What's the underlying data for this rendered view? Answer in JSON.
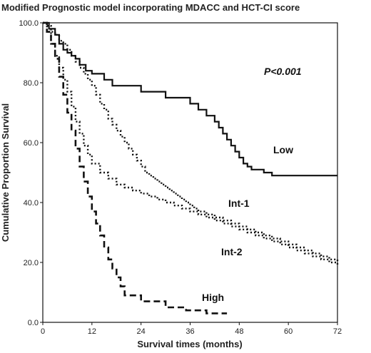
{
  "chart_data": {
    "type": "line",
    "title": "Modified Prognostic model incorporating MDACC and HCT-CI score",
    "xlabel": "Survival times (months)",
    "ylabel": "Cumulative  Proportion Survival",
    "xlim": [
      0,
      72
    ],
    "ylim": [
      0,
      100
    ],
    "xticks": [
      0,
      12,
      24,
      36,
      48,
      60,
      72
    ],
    "yticks": [
      0.0,
      20.0,
      40.0,
      60.0,
      80.0,
      100.0
    ],
    "xtick_labels": [
      "0",
      "12",
      "24",
      "36",
      "48",
      "60",
      "72"
    ],
    "ytick_labels": [
      "0.0",
      "20.0",
      "40.0",
      "60.0",
      "80.0",
      "100.0"
    ],
    "grid": false,
    "legend": "none",
    "annotation": "P<0.001",
    "series": [
      {
        "name": "Low",
        "style": "solid",
        "color": "#111111",
        "x": [
          0,
          1.5,
          3,
          4,
          5,
          6,
          7,
          8,
          9,
          10.5,
          12,
          15,
          17,
          24,
          30,
          36,
          38,
          40,
          42,
          43,
          44,
          45,
          46,
          47,
          48,
          49,
          50,
          51,
          52,
          54,
          56,
          72
        ],
        "y": [
          100,
          98,
          96,
          93,
          91,
          90,
          89,
          88,
          86,
          84,
          83,
          81,
          79,
          77,
          75,
          73,
          71,
          69,
          67,
          65,
          63,
          61,
          59,
          57,
          55,
          53,
          52,
          51,
          51,
          50,
          49,
          49
        ]
      },
      {
        "name": "Int-1",
        "style": "dotted",
        "color": "#111111",
        "x": [
          0,
          1,
          2,
          3,
          4,
          5,
          6,
          7,
          8,
          9,
          10,
          11,
          12,
          13,
          14,
          15,
          16,
          17,
          18,
          19,
          20,
          21,
          22,
          23,
          24,
          25,
          26,
          27,
          28,
          29,
          30,
          31,
          32,
          33,
          34,
          35,
          36,
          37,
          38,
          40,
          42,
          44,
          46,
          48,
          50,
          52,
          54,
          56,
          58,
          60,
          62,
          64,
          66,
          68,
          70,
          72
        ],
        "y": [
          100,
          99,
          97,
          96,
          94,
          93,
          91,
          89,
          87,
          85,
          83,
          81,
          79,
          76,
          73,
          71,
          68,
          66,
          64,
          62,
          60,
          58,
          56,
          54,
          52,
          50,
          49,
          48,
          47,
          46,
          45,
          44,
          43,
          42,
          41,
          40,
          39,
          38,
          37,
          36,
          35,
          34,
          33,
          32,
          31,
          30,
          29,
          28,
          27,
          26,
          25,
          24,
          23,
          22,
          21,
          20
        ]
      },
      {
        "name": "Int-2",
        "style": "dotted",
        "color": "#111111",
        "x": [
          0,
          1,
          2,
          3,
          4,
          5,
          6,
          7,
          8,
          9,
          10,
          11,
          12,
          14,
          16,
          18,
          20,
          22,
          24,
          26,
          28,
          30,
          32,
          34,
          36,
          38,
          40,
          42,
          44,
          46,
          48,
          50,
          52,
          54,
          56,
          58,
          60,
          62,
          64,
          66,
          68,
          70,
          72
        ],
        "y": [
          100,
          97,
          93,
          89,
          85,
          81,
          77,
          72,
          67,
          63,
          59,
          56,
          53,
          50,
          48,
          46,
          45,
          44,
          43,
          42,
          41,
          40,
          39,
          38,
          37,
          36,
          35,
          34,
          33,
          32,
          31,
          30,
          29,
          28,
          27,
          26,
          25,
          24,
          23,
          22,
          21,
          20,
          19
        ]
      },
      {
        "name": "High",
        "style": "dashed",
        "color": "#111111",
        "x": [
          0,
          1,
          2,
          3,
          4,
          5,
          6,
          7,
          8,
          9,
          10,
          11,
          12,
          13,
          14,
          15,
          16,
          17,
          18,
          19,
          20,
          24,
          30,
          34,
          35,
          36,
          40,
          45
        ],
        "y": [
          100,
          97,
          93,
          88,
          82,
          76,
          70,
          64,
          58,
          52,
          47,
          42,
          37,
          33,
          29,
          25,
          21,
          18,
          15,
          12,
          9,
          7,
          5,
          5,
          4,
          4,
          3,
          3
        ]
      }
    ]
  }
}
